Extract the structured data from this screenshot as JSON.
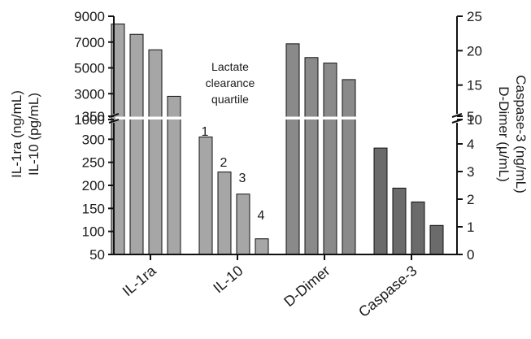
{
  "chart_data": {
    "type": "bar",
    "categories": [
      "IL-1ra",
      "IL-10",
      "D-Dimer",
      "Caspase-3"
    ],
    "quartile_labels": [
      "1",
      "2",
      "3",
      "4"
    ],
    "annotation": [
      "Lactate",
      "clearance",
      "quartile"
    ],
    "left_axis_title": [
      "IL-1ra (ng/mL)",
      "IL-10 (pg/mL)"
    ],
    "right_axis_title": [
      "D-Dimer (µ/mL)",
      "Caspase-3 (ng/mL)"
    ],
    "left_axis": {
      "broken": true,
      "lower_range": [
        50,
        350
      ],
      "lower_ticks": [
        "50",
        "100",
        "150",
        "200",
        "250",
        "300",
        "350"
      ],
      "upper_range": [
        1000,
        9000
      ],
      "upper_ticks": [
        "1000",
        "3000",
        "5000",
        "7000",
        "9000"
      ]
    },
    "right_axis": {
      "broken": true,
      "lower_range": [
        0,
        5
      ],
      "lower_ticks": [
        "0",
        "1",
        "2",
        "3",
        "4",
        "5"
      ],
      "upper_range": [
        10,
        25
      ],
      "upper_ticks": [
        "10",
        "15",
        "20",
        "25"
      ]
    },
    "bars": {
      "IL-1ra": {
        "axis": "left",
        "values": [
          8400,
          7600,
          6400,
          2800
        ],
        "color": "#a6a6a6"
      },
      "IL-10": {
        "axis": "left",
        "values": [
          305,
          229,
          181,
          84
        ],
        "color": "#a6a6a6"
      },
      "D-Dimer": {
        "axis": "right",
        "values": [
          21.0,
          19.0,
          18.2,
          15.8
        ],
        "color": "#8a8a8a"
      },
      "Caspase-3": {
        "axis": "right",
        "values": [
          3.85,
          2.4,
          1.9,
          1.05
        ],
        "color": "#6b6b6b"
      }
    },
    "grid": false,
    "legend": "none"
  }
}
